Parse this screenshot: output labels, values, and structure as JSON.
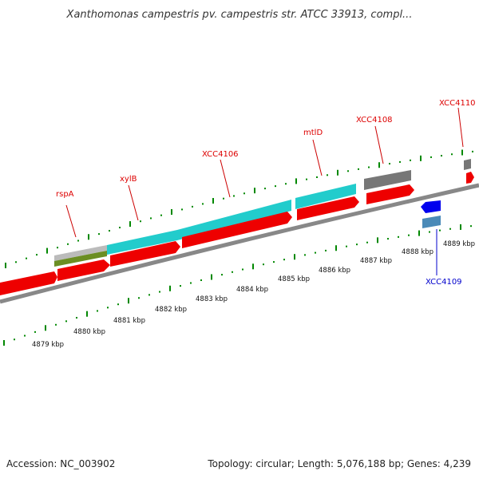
{
  "title": "Xanthomonas campestris pv. campestris str. ATCC 33913, compl...",
  "footer": {
    "accession": "Accession: NC_003902",
    "summary": "Topology: circular; Length: 5,076,188 bp; Genes: 4,239"
  },
  "colors": {
    "gene_label_top": "#dd0000",
    "gene_label_bottom": "#0000cc",
    "cds_forward": "#ee0000",
    "rna_cyan": "#22cccc",
    "gray_feature": "#777777",
    "tick": "#008800",
    "backbone": "#888888"
  },
  "axis": {
    "ticks": [
      "4879 kbp",
      "4880 kbp",
      "4881 kbp",
      "4882 kbp",
      "4883 kbp",
      "4884 kbp",
      "4885 kbp",
      "4886 kbp",
      "4887 kbp",
      "4888 kbp",
      "4889 kbp"
    ]
  },
  "gene_labels": [
    {
      "name": "rspA",
      "strand": "forward"
    },
    {
      "name": "xylB",
      "strand": "forward"
    },
    {
      "name": "XCC4106",
      "strand": "forward"
    },
    {
      "name": "mtlD",
      "strand": "forward"
    },
    {
      "name": "XCC4108",
      "strand": "forward"
    },
    {
      "name": "XCC4110",
      "strand": "forward"
    },
    {
      "name": "XCC4109",
      "strand": "reverse"
    }
  ]
}
